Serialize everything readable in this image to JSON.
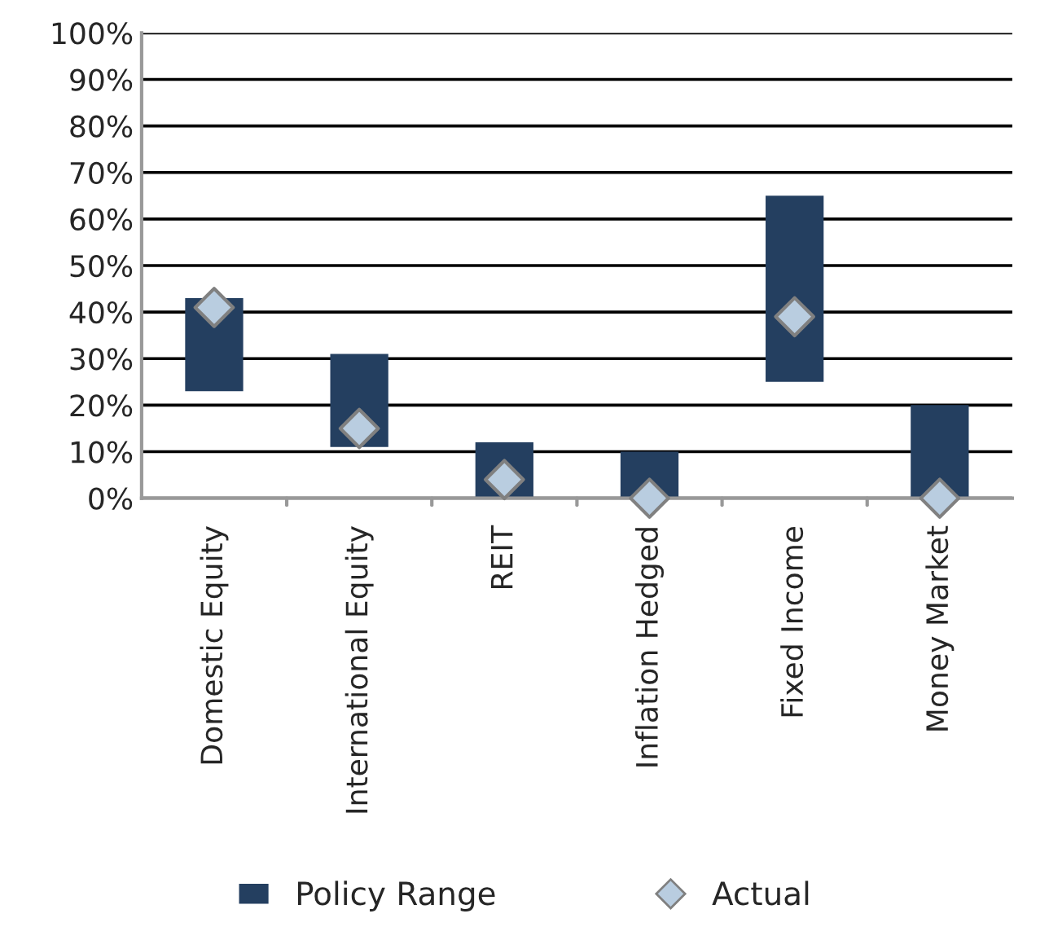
{
  "chart_data": {
    "type": "bar",
    "categories": [
      "Domestic Equity",
      "International Equity",
      "REIT",
      "Inflation Hedged",
      "Fixed Income",
      "Money Market"
    ],
    "ylim": [
      0,
      100
    ],
    "yticks": [
      {
        "value": 0,
        "label": "0%"
      },
      {
        "value": 10,
        "label": "10%"
      },
      {
        "value": 20,
        "label": "20%"
      },
      {
        "value": 30,
        "label": "30%"
      },
      {
        "value": 40,
        "label": "40%"
      },
      {
        "value": 50,
        "label": "50%"
      },
      {
        "value": 60,
        "label": "60%"
      },
      {
        "value": 70,
        "label": "70%"
      },
      {
        "value": 80,
        "label": "80%"
      },
      {
        "value": 90,
        "label": "90%"
      },
      {
        "value": 100,
        "label": "100%"
      }
    ],
    "grid": "y",
    "legend": "bottom",
    "series": [
      {
        "name": "Policy Range",
        "color": "#243f60",
        "base": [
          23,
          11,
          0,
          0,
          25,
          0
        ],
        "values": [
          20,
          20,
          12,
          10,
          40,
          20
        ]
      },
      {
        "name": "Actual",
        "type": "scatter",
        "color": "#b9cde0",
        "marker": "diamond",
        "x": [
          "Domestic Equity",
          "International Equity",
          "REIT",
          "Inflation Hedged",
          "Fixed Income",
          "Money Market"
        ],
        "values": [
          41,
          15,
          4,
          0,
          39,
          0
        ]
      }
    ]
  }
}
